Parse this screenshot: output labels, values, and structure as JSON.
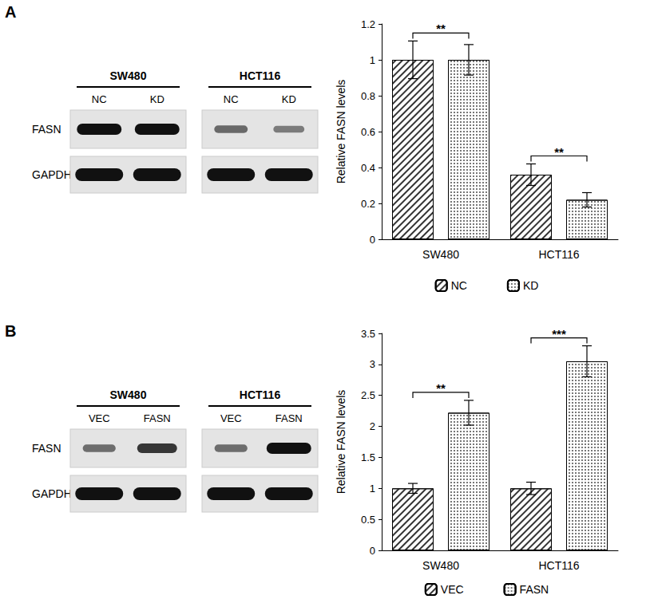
{
  "chart_data": [
    {
      "type": "bar",
      "y_label": "Relative FASN levels",
      "categories": [
        "SW480",
        "HCT116"
      ],
      "series": [
        {
          "name": "NC",
          "color": "#333333",
          "marker": "hatch",
          "values": [
            1,
            0.36
          ],
          "errors": [
            0.105,
            0.06
          ]
        },
        {
          "name": "KD",
          "color": "#777777",
          "marker": "dots",
          "values": [
            1,
            0.22
          ],
          "errors": [
            0.085,
            0.04
          ]
        }
      ],
      "ylim": [
        0,
        1.2
      ],
      "yticks": [
        0,
        0.2,
        0.4,
        0.6,
        0.8,
        1,
        1.2
      ],
      "grid": false,
      "legend": "bottom",
      "annotations": [
        {
          "category": "SW480",
          "text": "**"
        },
        {
          "category": "HCT116",
          "text": "**"
        }
      ]
    },
    {
      "type": "bar",
      "y_label": "Relative FASN levels",
      "categories": [
        "SW480",
        "HCT116"
      ],
      "series": [
        {
          "name": "VEC",
          "color": "#333333",
          "marker": "hatch",
          "values": [
            1,
            1
          ],
          "errors": [
            0.08,
            0.1
          ]
        },
        {
          "name": "FASN",
          "color": "#777777",
          "marker": "dots",
          "values": [
            2.22,
            3.05
          ],
          "errors": [
            0.2,
            0.25
          ]
        }
      ],
      "ylim": [
        0,
        3.5
      ],
      "yticks": [
        0,
        0.5,
        1,
        1.5,
        2,
        2.5,
        3,
        3.5
      ],
      "grid": false,
      "legend": "bottom",
      "annotations": [
        {
          "category": "SW480",
          "text": "**"
        },
        {
          "category": "HCT116",
          "text": "***"
        }
      ]
    }
  ],
  "panels": [
    {
      "label": "A",
      "blot_rows": [
        "FASN",
        "GAPDH"
      ]
    },
    {
      "label": "B",
      "blot_rows": [
        "FASN",
        "GAPDH"
      ]
    }
  ]
}
